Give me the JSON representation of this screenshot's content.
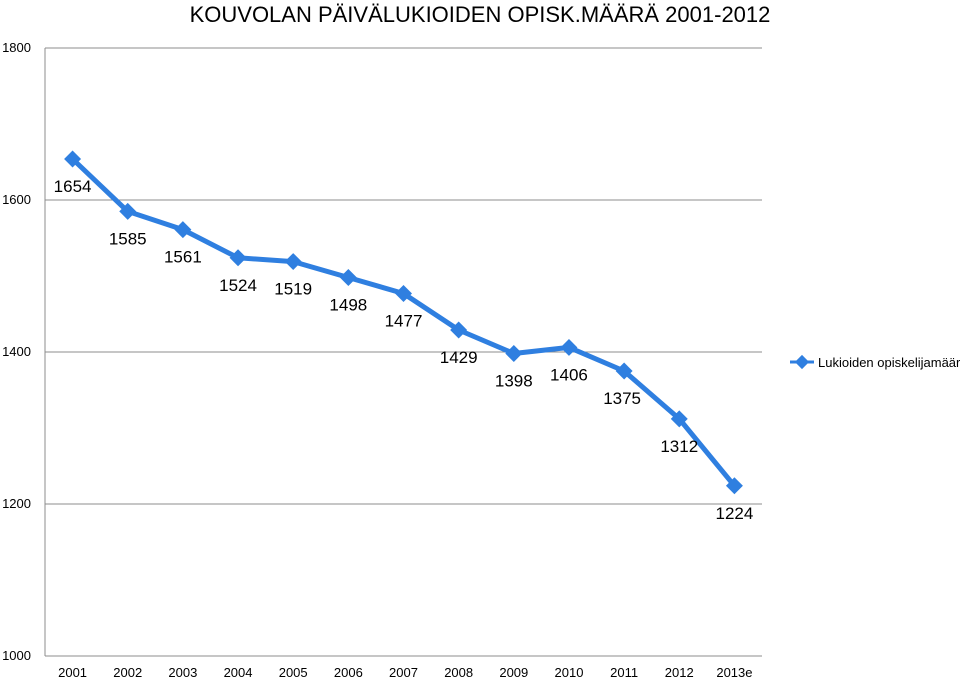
{
  "chart_data": {
    "type": "line",
    "title": "KOUVOLAN PÄIVÄLUKIOIDEN OPISK.MÄÄRÄ 2001-2012",
    "categories": [
      "2001",
      "2002",
      "2003",
      "2004",
      "2005",
      "2006",
      "2007",
      "2008",
      "2009",
      "2010",
      "2011",
      "2012",
      "2013e"
    ],
    "series": [
      {
        "name": "Lukioiden opiskelijamäärä",
        "values": [
          1654,
          1585,
          1561,
          1524,
          1519,
          1498,
          1477,
          1429,
          1398,
          1406,
          1375,
          1312,
          1224
        ]
      }
    ],
    "value_labels": [
      "1654",
      "1585",
      "1561",
      "1524",
      "1519",
      "1498",
      "1477",
      "1429",
      "1398",
      "1406",
      "1375",
      "1312",
      "1224"
    ],
    "ylim": [
      1000,
      1800
    ],
    "yticks": [
      1000,
      1200,
      1400,
      1600,
      1800
    ],
    "ytick_labels": [
      "1000",
      "1200",
      "1400",
      "1600",
      "1800"
    ],
    "grid": true,
    "legend_position": "right",
    "line_color": "#2f7fe0",
    "marker_color": "#2f7fe0",
    "grid_color": "#8c8c8c"
  }
}
